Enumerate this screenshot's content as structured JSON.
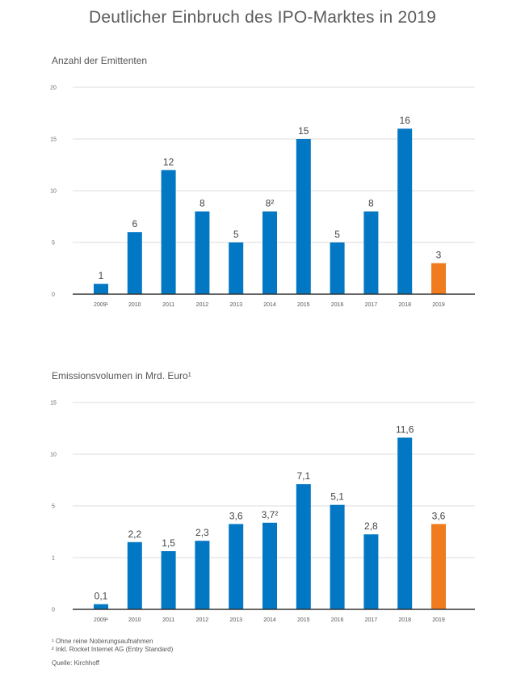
{
  "page": {
    "title": "Deutlicher Einbruch des IPO-Marktes in 2019"
  },
  "colors": {
    "bar": "#0277c3",
    "highlight": "#f07c1e",
    "grid": "#dddddd",
    "axis": "#333333"
  },
  "chart_data": [
    {
      "type": "bar",
      "title": "Anzahl der Emittenten",
      "categories": [
        "2009¹",
        "2010",
        "2011",
        "2012",
        "2013",
        "2014",
        "2015",
        "2016",
        "2017",
        "2018",
        "2019"
      ],
      "values": [
        1,
        6,
        12,
        8,
        5,
        8,
        15,
        5,
        8,
        16,
        3
      ],
      "value_labels": [
        "1",
        "6",
        "12",
        "8",
        "5",
        "8²",
        "15",
        "5",
        "8",
        "16",
        "3"
      ],
      "highlight_index": 10,
      "yticks": [
        "0",
        "5",
        "10",
        "15",
        "20"
      ],
      "ylim": [
        0,
        20
      ],
      "grid": true
    },
    {
      "type": "bar",
      "title": "Emissionsvolumen in Mrd. Euro¹",
      "categories": [
        "2009¹",
        "2010",
        "2011",
        "2012",
        "2013",
        "2014",
        "2015",
        "2016",
        "2017",
        "2018",
        "2019"
      ],
      "values": [
        0.1,
        2.2,
        1.5,
        2.3,
        3.6,
        3.7,
        7.1,
        5.1,
        2.8,
        11.6,
        3.6
      ],
      "value_labels": [
        "0,1",
        "2,2",
        "1,5",
        "2,3",
        "3,6",
        "3,7²",
        "7,1",
        "5,1",
        "2,8",
        "11,6",
        "3,6"
      ],
      "highlight_index": 10,
      "yticks": [
        "0",
        "1",
        "5",
        "10",
        "15"
      ],
      "grid": true
    }
  ],
  "footnotes": [
    "¹ Ohne reine Notierungsaufnahmen",
    "² Inkl. Rocket Internet AG (Entry Standard)"
  ],
  "source": "Quelle: Kirchhoff"
}
